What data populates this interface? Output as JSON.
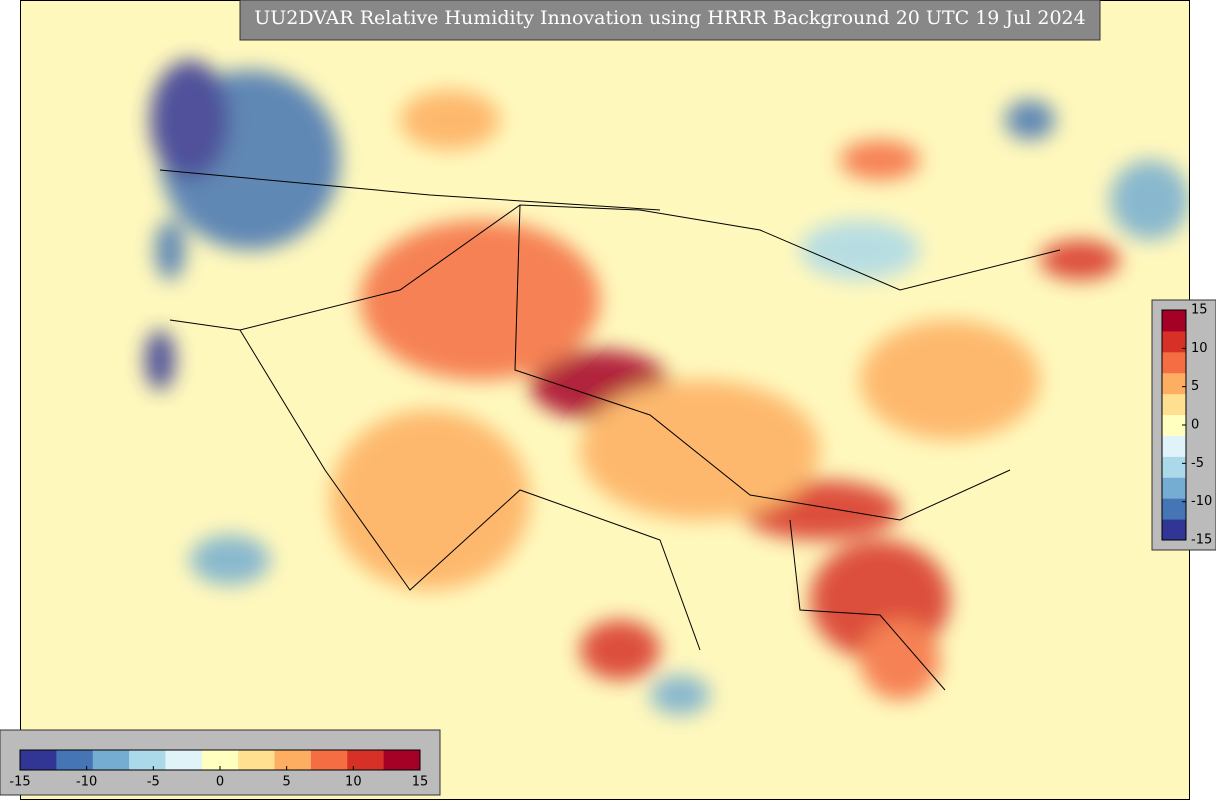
{
  "title": "UU2DVAR Relative Humidity Innovation using HRRR Background 20 UTC 19 Jul 2024",
  "colormap": [
    "#313695",
    "#4575b4",
    "#74add1",
    "#abd9e9",
    "#e0f3f8",
    "#ffffbf",
    "#fee090",
    "#fdae61",
    "#f46d43",
    "#d73027",
    "#a50026"
  ],
  "colorbars": [
    {
      "orientation": "vertical",
      "range": [
        -15,
        15
      ],
      "ticks": [
        15,
        10,
        5,
        0,
        -5,
        -10,
        -15
      ]
    },
    {
      "orientation": "horizontal",
      "range": [
        -15,
        15
      ],
      "ticks": [
        -15,
        -10,
        -5,
        0,
        5,
        10,
        15
      ]
    }
  ]
}
